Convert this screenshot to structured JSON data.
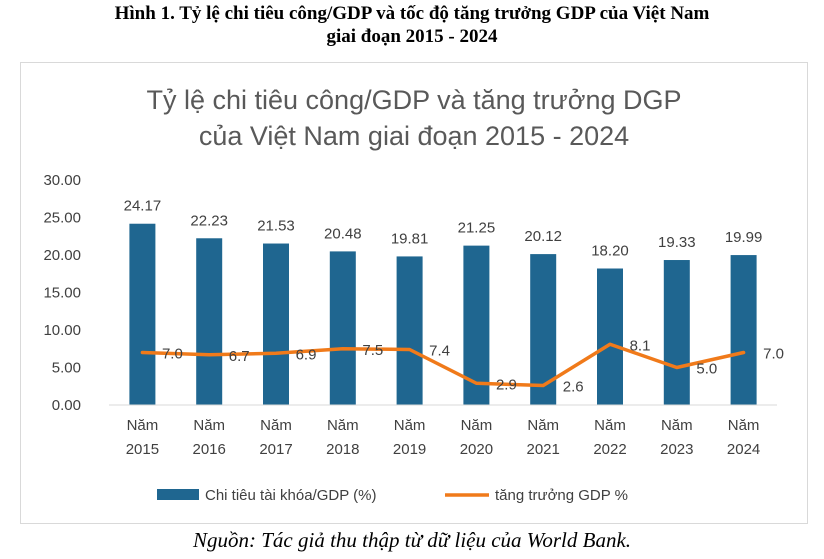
{
  "figure": {
    "caption_line1": "Hình 1. Tỷ lệ chi tiêu công/GDP và tốc độ tăng trưởng GDP của Việt Nam",
    "caption_line2": "giai đoạn 2015 - 2024",
    "source": "Nguồn: Tác giả thu thập từ dữ liệu của World Bank."
  },
  "chart_data": {
    "type": "bar",
    "title_line1": "Tỷ lệ chi tiêu công/GDP và tăng trưởng DGP",
    "title_line2": "của Việt Nam giai đoạn 2015 - 2024",
    "categories": [
      [
        "Năm",
        "2015"
      ],
      [
        "Năm",
        "2016"
      ],
      [
        "Năm",
        "2017"
      ],
      [
        "Năm",
        "2018"
      ],
      [
        "Năm",
        "2019"
      ],
      [
        "Năm",
        "2020"
      ],
      [
        "Năm",
        "2021"
      ],
      [
        "Năm",
        "2022"
      ],
      [
        "Năm",
        "2023"
      ],
      [
        "Năm",
        "2024"
      ]
    ],
    "series": [
      {
        "name": "Chi tiêu tài khóa/GDP (%)",
        "kind": "bar",
        "color": "#1f6690",
        "values": [
          24.17,
          22.23,
          21.53,
          20.48,
          19.81,
          21.25,
          20.12,
          18.2,
          19.33,
          19.99
        ],
        "labels": [
          "24.17",
          "22.23",
          "21.53",
          "20.48",
          "19.81",
          "21.25",
          "20.12",
          "18.20",
          "19.33",
          "19.99"
        ]
      },
      {
        "name": "tăng trưởng GDP %",
        "kind": "line",
        "color": "#f07a1a",
        "values": [
          7.0,
          6.7,
          6.9,
          7.5,
          7.4,
          2.9,
          2.6,
          8.1,
          5.0,
          7.0
        ],
        "labels": [
          "7.0",
          "6.7",
          "6.9",
          "7.5",
          "7.4",
          "2.9",
          "2.6",
          "8.1",
          "5.0",
          "7.0"
        ]
      }
    ],
    "yticks": [
      "0.00",
      "5.00",
      "10.00",
      "15.00",
      "20.00",
      "25.00",
      "30.00"
    ],
    "ylim": [
      0,
      30
    ],
    "grid": false,
    "legend_position": "bottom"
  }
}
